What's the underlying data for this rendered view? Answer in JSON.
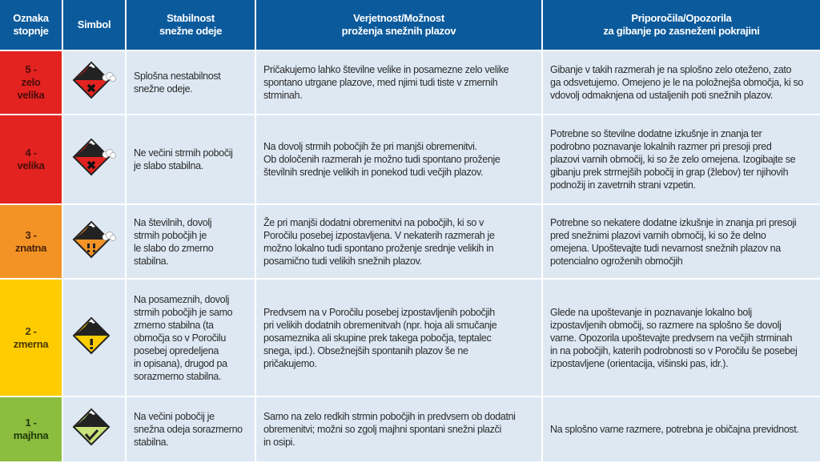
{
  "headers": [
    "Oznaka\nstopnje",
    "Simbol",
    "Stabilnost\nsnežne odeje",
    "Verjetnost/Možnost\nproženja snežnih plazov",
    "Priporočila/Opozorila\nza gibanje po zasneženi pokrajini"
  ],
  "colors": {
    "header": "#0b5a9c",
    "cell": "#dde8f3",
    "5": "#e3231f",
    "4": "#e3231f",
    "3": "#f39325",
    "2": "#fecc00",
    "1": "#8cbd3f"
  },
  "rows": [
    {
      "level": "5 -\nzelo\nvelika",
      "icon": "avalanche-danger-5-icon",
      "stability": "Splošna nestabilnost\nsnežne odeje.",
      "probability": "Pričakujemo lahko številne velike in posamezne zelo velike\nspontano utrgane plazove, med njimi tudi tiste v zmernih\nstrminah.",
      "recommendation": "Gibanje v takih razmerah je na splošno zelo oteženo, zato\nga odsvetujemo. Omejeno je le na položnejša območja, ki so\nvdovolj odmaknjena od ustaljenih poti snežnih plazov."
    },
    {
      "level": "4 -\nvelika",
      "icon": "avalanche-danger-4-icon",
      "stability": "Ne večini strmih pobočij\nje slabo stabilna.",
      "probability": "Na dovolj strmih pobočjih že pri manjši obremenitvi.\nOb določenih razmerah je možno tudi spontano proženje\nštevilnih srednje velikih in ponekod tudi večjih plazov.",
      "recommendation": "Potrebne so številne dodatne izkušnje in znanja ter\npodrobno poznavanje lokalnih razmer pri presoji pred\nplazovi varnih območij, ki so že zelo omejena. Izogibajte se\ngibanju prek strmejših pobočij in grap (žlebov) ter njihovih\npodnožij in zavetrnih strani vzpetin."
    },
    {
      "level": "3 -\nznatna",
      "icon": "avalanche-danger-3-icon",
      "stability": "Na številnih, dovolj\nstrmih pobočjih je\nle slabo do zmerno\nstabilna.",
      "probability": "Že pri manjši dodatni obremenitvi na pobočjih, ki so v\nPoročilu posebej izpostavljena. V nekaterih razmerah je\nmožno lokalno tudi spontano proženje srednje velikih in\nposamično tudi velikih snežnih plazov.",
      "recommendation": "Potrebne so nekatere dodatne izkušnje in znanja pri presoji\npred snežnimi plazovi varnih območij, ki so že delno\nomejena. Upoštevajte tudi nevarnost snežnih plazov na\npotencialno ogroženih območjih"
    },
    {
      "level": "2 -\nzmerna",
      "icon": "avalanche-danger-2-icon",
      "stability": "Na posameznih, dovolj\nstrmih pobočjih je samo\nzmerno stabilna (ta\nobmočja so v Poročilu\nposebej opredeljena\nin opisana), drugod pa\nsorazmerno stabilna.",
      "probability": "Predvsem na v Poročilu posebej izpostavljenih pobočjih\npri velikih dodatnih obremenitvah (npr. hoja ali smučanje\nposameznika ali skupine prek takega pobočja, teptalec\nsnega, ipd.). Obsežnejših spontanih plazov še ne\npričakujemo.",
      "recommendation": "Glede na upoštevanje in poznavanje lokalno bolj\nizpostavljenih območij, so razmere na splošno še dovolj\nvarne. Opozorila upoštevajte predvsem na večjih strminah\nin na pobočjih, katerih podrobnosti so v Poročilu še posebej\nizpostavljene (orientacija, višinski pas, idr.)."
    },
    {
      "level": "1 -\nmajhna",
      "icon": "avalanche-danger-1-icon",
      "stability": "Na večini pobočij je\nsnežna odeja sorazmerno\nstabilna.",
      "probability": "Samo na zelo redkih strmin pobočjih in predvsem ob dodatni\nobremenitvi; možni so zgolj majhni spontani snežni plazči\nin osipi.",
      "recommendation": "Na splošno varne razmere, potrebna je običajna previdnost."
    }
  ]
}
